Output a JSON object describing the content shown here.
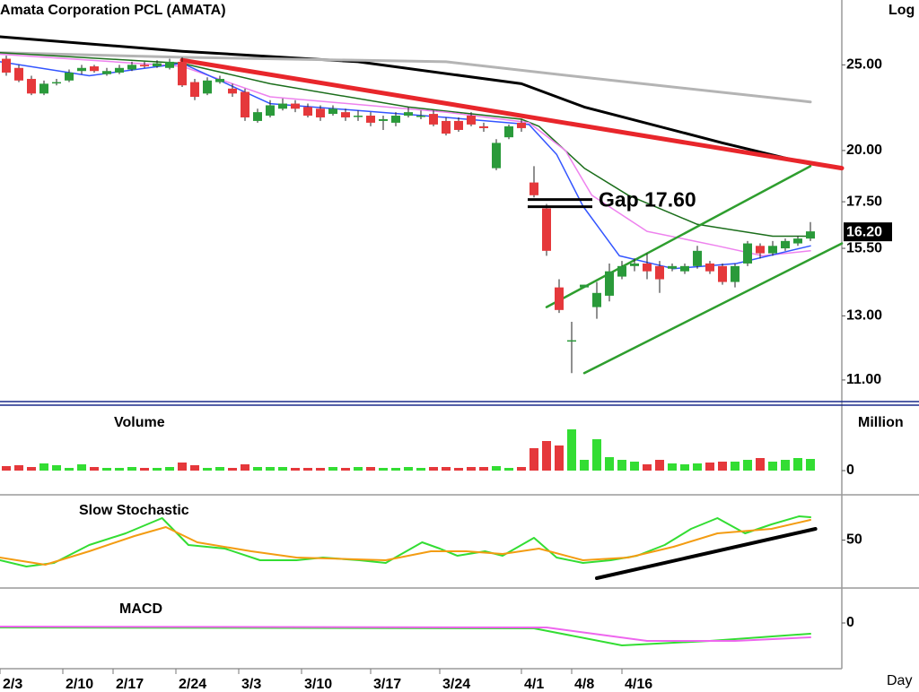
{
  "chart_data": [
    {
      "type": "candlestick",
      "title": "Amata Corporation PCL (AMATA)",
      "scale_label": "Log",
      "log_scale": true,
      "xlim": [
        -0.5,
        66.5
      ],
      "ylim": [
        10.35,
        29.6
      ],
      "yticks": [
        {
          "value": 11,
          "label": "11.00"
        },
        {
          "value": 13,
          "label": "13.00"
        },
        {
          "value": 15.5,
          "label": "15.50"
        },
        {
          "value": 17.5,
          "label": "17.50"
        },
        {
          "value": 20,
          "label": "20.00"
        },
        {
          "value": 25,
          "label": "25.00"
        }
      ],
      "up_color": "#2a9a3a",
      "down_color": "#e5383b",
      "open": [
        25.4,
        24.8,
        24.1,
        23.2,
        23.9,
        24.0,
        24.6,
        24.9,
        24.4,
        24.5,
        24.7,
        25.0,
        24.9,
        24.8,
        25.2,
        23.9,
        23.2,
        23.9,
        23.5,
        23.3,
        21.6,
        21.9,
        22.3,
        22.6,
        22.4,
        22.3,
        22.0,
        22.1,
        21.9,
        21.9,
        21.6,
        21.5,
        21.9,
        21.9,
        22.0,
        21.6,
        21.6,
        21.9,
        21.3,
        19.1,
        20.7,
        21.5,
        18.4,
        17.2,
        14.0,
        12.2,
        14.0,
        13.3,
        13.7,
        14.4,
        14.8,
        14.9,
        14.8,
        14.7,
        14.6,
        14.8,
        14.9,
        14.8,
        14.2,
        14.9,
        15.6,
        15.3,
        15.5,
        15.7,
        15.9
      ],
      "high": [
        25.6,
        25.0,
        24.3,
        24.0,
        24.1,
        24.7,
        25.0,
        25.0,
        24.8,
        25.0,
        25.2,
        25.2,
        25.3,
        25.4,
        25.5,
        24.1,
        24.2,
        24.3,
        23.8,
        23.5,
        22.3,
        22.8,
        22.9,
        22.8,
        22.6,
        22.5,
        22.5,
        22.3,
        22.2,
        22.1,
        21.9,
        22.1,
        22.4,
        22.2,
        22.2,
        21.8,
        21.8,
        22.1,
        21.5,
        20.6,
        21.4,
        21.7,
        19.2,
        17.4,
        14.3,
        12.8,
        14.1,
        14.2,
        14.9,
        15.0,
        15.1,
        15.3,
        15.0,
        14.9,
        14.9,
        15.6,
        15.0,
        14.9,
        14.9,
        15.8,
        15.7,
        15.8,
        15.9,
        16.0,
        16.6
      ],
      "low": [
        24.3,
        23.9,
        23.1,
        23.1,
        23.7,
        23.9,
        24.4,
        24.5,
        24.3,
        24.4,
        24.6,
        24.8,
        24.8,
        24.7,
        23.6,
        22.8,
        23.1,
        23.8,
        23.0,
        21.6,
        21.5,
        21.8,
        22.2,
        22.1,
        21.8,
        21.6,
        21.9,
        21.6,
        21.6,
        21.3,
        21.1,
        21.3,
        21.8,
        21.7,
        21.3,
        20.8,
        21.0,
        21.3,
        21.0,
        19.0,
        20.6,
        21.0,
        17.7,
        15.2,
        13.1,
        11.2,
        14.0,
        12.9,
        13.5,
        14.3,
        14.6,
        14.3,
        13.8,
        14.6,
        14.5,
        14.7,
        14.5,
        14.1,
        14.0,
        14.8,
        15.1,
        15.2,
        15.4,
        15.6,
        15.8
      ],
      "close": [
        24.5,
        24.0,
        23.2,
        23.8,
        23.9,
        24.5,
        24.8,
        24.6,
        24.6,
        24.8,
        25.0,
        24.9,
        25.1,
        25.2,
        23.7,
        23.0,
        24.0,
        24.1,
        23.2,
        21.8,
        22.1,
        22.5,
        22.6,
        22.3,
        21.9,
        21.8,
        22.3,
        21.8,
        21.9,
        21.5,
        21.7,
        21.9,
        22.1,
        21.9,
        21.4,
        20.9,
        21.1,
        21.4,
        21.2,
        20.4,
        21.3,
        21.2,
        17.8,
        15.4,
        13.2,
        12.2,
        14.1,
        13.8,
        14.6,
        14.8,
        14.9,
        14.6,
        14.3,
        14.8,
        14.8,
        15.4,
        14.6,
        14.2,
        14.8,
        15.7,
        15.3,
        15.6,
        15.8,
        15.9,
        16.2
      ],
      "series": [
        {
          "color": "#000000",
          "width": 3,
          "x": [
            -0.5,
            14,
            28,
            41,
            46,
            57,
            64
          ],
          "values": [
            26.9,
            25.9,
            25.2,
            23.8,
            22.4,
            20.4,
            19.3
          ]
        },
        {
          "color": "#b4b4b4",
          "width": 3,
          "x": [
            -0.5,
            14,
            35,
            46,
            64
          ],
          "values": [
            25.8,
            25.5,
            25.2,
            24.2,
            22.7
          ]
        },
        {
          "color": "#1b6e1b",
          "width": 1.5,
          "x": [
            -0.5,
            14,
            21,
            32,
            41,
            42.4,
            46,
            49.5,
            55,
            61,
            64
          ],
          "values": [
            25.8,
            25.1,
            23.8,
            22.4,
            21.7,
            21.3,
            19.1,
            17.8,
            16.5,
            16.0,
            16.0
          ]
        },
        {
          "color": "#ee82ee",
          "width": 1.5,
          "x": [
            -0.5,
            14,
            21,
            35,
            41.6,
            44.5,
            46.6,
            51,
            56.6,
            60.2,
            64
          ],
          "values": [
            25.7,
            24.9,
            23.0,
            22.1,
            21.5,
            20.0,
            17.8,
            16.2,
            15.6,
            15.2,
            15.4
          ]
        },
        {
          "color": "#3355ff",
          "width": 1.5,
          "x": [
            -0.5,
            6.6,
            14,
            21,
            35,
            41.6,
            43.8,
            45.9,
            48.8,
            53.1,
            58.1,
            64
          ],
          "values": [
            25.2,
            24.3,
            25.1,
            22.6,
            21.8,
            21.4,
            19.8,
            17.3,
            15.2,
            14.7,
            14.9,
            15.6
          ]
        },
        {
          "color": "#e8262b",
          "width": 5,
          "x": [
            14,
            66.5
          ],
          "values": [
            25.3,
            19.1
          ]
        },
        {
          "color": "#2e9e2e",
          "width": 2.5,
          "x": [
            43,
            64
          ],
          "values": [
            13.3,
            19.2
          ]
        },
        {
          "color": "#2e9e2e",
          "width": 2.5,
          "x": [
            46,
            66.5
          ],
          "values": [
            11.2,
            15.7
          ]
        }
      ],
      "annotations": [
        {
          "text": "Gap 17.60",
          "value": 17.6
        }
      ],
      "last_price": {
        "value": 16.2,
        "label": "16.20"
      }
    },
    {
      "type": "bar",
      "title": "Volume",
      "ylabel": "Million",
      "xlim": [
        -0.5,
        66.5
      ],
      "ylim": [
        -25,
        70
      ],
      "yticks": [
        0
      ],
      "up_color": "#33dd33",
      "down_color": "#e5383b",
      "values": [
        5,
        6,
        4,
        8,
        6,
        3,
        7,
        4,
        3,
        3,
        4,
        3,
        3,
        4,
        9,
        6,
        3,
        4,
        3,
        7,
        4,
        4,
        4,
        3,
        3,
        3,
        4,
        3,
        4,
        4,
        3,
        3,
        4,
        3,
        4,
        4,
        3,
        4,
        4,
        5,
        3,
        4,
        25,
        33,
        28,
        46,
        12,
        35,
        15,
        12,
        10,
        7,
        12,
        8,
        7,
        8,
        9,
        10,
        10,
        12,
        14,
        10,
        12,
        14,
        13
      ]
    },
    {
      "type": "line",
      "title": "Slow Stochastic",
      "xlim": [
        -0.5,
        66.5
      ],
      "ylim": [
        0,
        100
      ],
      "yticks": [
        50
      ],
      "series": [
        {
          "color": "#33dd33",
          "width": 2,
          "x": [
            -0.5,
            1.6,
            3.8,
            6.6,
            9.5,
            12.4,
            14.5,
            17.4,
            20.2,
            23.1,
            25.2,
            28.1,
            30.2,
            33.1,
            34.5,
            35.9,
            38.1,
            39.5,
            42,
            43.8,
            45.9,
            48.1,
            50.2,
            52.4,
            54.5,
            56.6,
            58.8,
            60.9,
            63.1,
            64
          ],
          "values": [
            26.3,
            19,
            23.2,
            44.2,
            57.9,
            75.8,
            44.2,
            40,
            26.3,
            26.3,
            29.5,
            26.3,
            23.2,
            47.4,
            40,
            31.6,
            36.8,
            31.6,
            52.6,
            29.5,
            23.2,
            26.3,
            31.6,
            44.2,
            63.2,
            75.8,
            57.9,
            68.4,
            77.9,
            76.8
          ]
        },
        {
          "color": "#f39c12",
          "width": 2,
          "x": [
            -0.5,
            3.1,
            6.6,
            10.2,
            12.7,
            15.2,
            19.5,
            23.1,
            30.2,
            33.8,
            36.6,
            39.5,
            42.4,
            45.9,
            49.5,
            53.1,
            56.6,
            60.9,
            64
          ],
          "values": [
            29.5,
            21.1,
            36.8,
            54.7,
            65.3,
            47.4,
            36.8,
            29.5,
            26.3,
            36.8,
            36.8,
            33.7,
            40,
            26.3,
            29.5,
            42.1,
            57.9,
            63.2,
            73.7
          ]
        },
        {
          "color": "#000000",
          "width": 4,
          "x": [
            47,
            64.4
          ],
          "values": [
            5.3,
            63.2
          ]
        }
      ]
    },
    {
      "type": "line",
      "title": "MACD",
      "xlabel": "Day",
      "xlim": [
        -0.5,
        66.5
      ],
      "ylim": [
        -2.5,
        1.75
      ],
      "yticks": [
        0
      ],
      "xticks": [
        {
          "value": -0.5,
          "label": "2/3"
        },
        {
          "value": 4.5,
          "label": "2/10"
        },
        {
          "value": 8.5,
          "label": "2/17"
        },
        {
          "value": 13.5,
          "label": "2/24"
        },
        {
          "value": 18.5,
          "label": "3/3"
        },
        {
          "value": 23.5,
          "label": "3/10"
        },
        {
          "value": 29,
          "label": "3/17"
        },
        {
          "value": 34.5,
          "label": "3/24"
        },
        {
          "value": 41,
          "label": "4/1"
        },
        {
          "value": 45,
          "label": "4/8"
        },
        {
          "value": 49,
          "label": "4/16"
        }
      ],
      "series": [
        {
          "color": "#33dd33",
          "width": 2,
          "x": [
            -0.5,
            42,
            49,
            56,
            64
          ],
          "values": [
            -0.25,
            -0.3,
            -1.25,
            -1.0,
            -0.6
          ]
        },
        {
          "color": "#ee66ee",
          "width": 2,
          "x": [
            -0.5,
            43,
            51,
            58,
            64
          ],
          "values": [
            -0.2,
            -0.25,
            -1.0,
            -1.0,
            -0.8
          ]
        }
      ]
    }
  ]
}
